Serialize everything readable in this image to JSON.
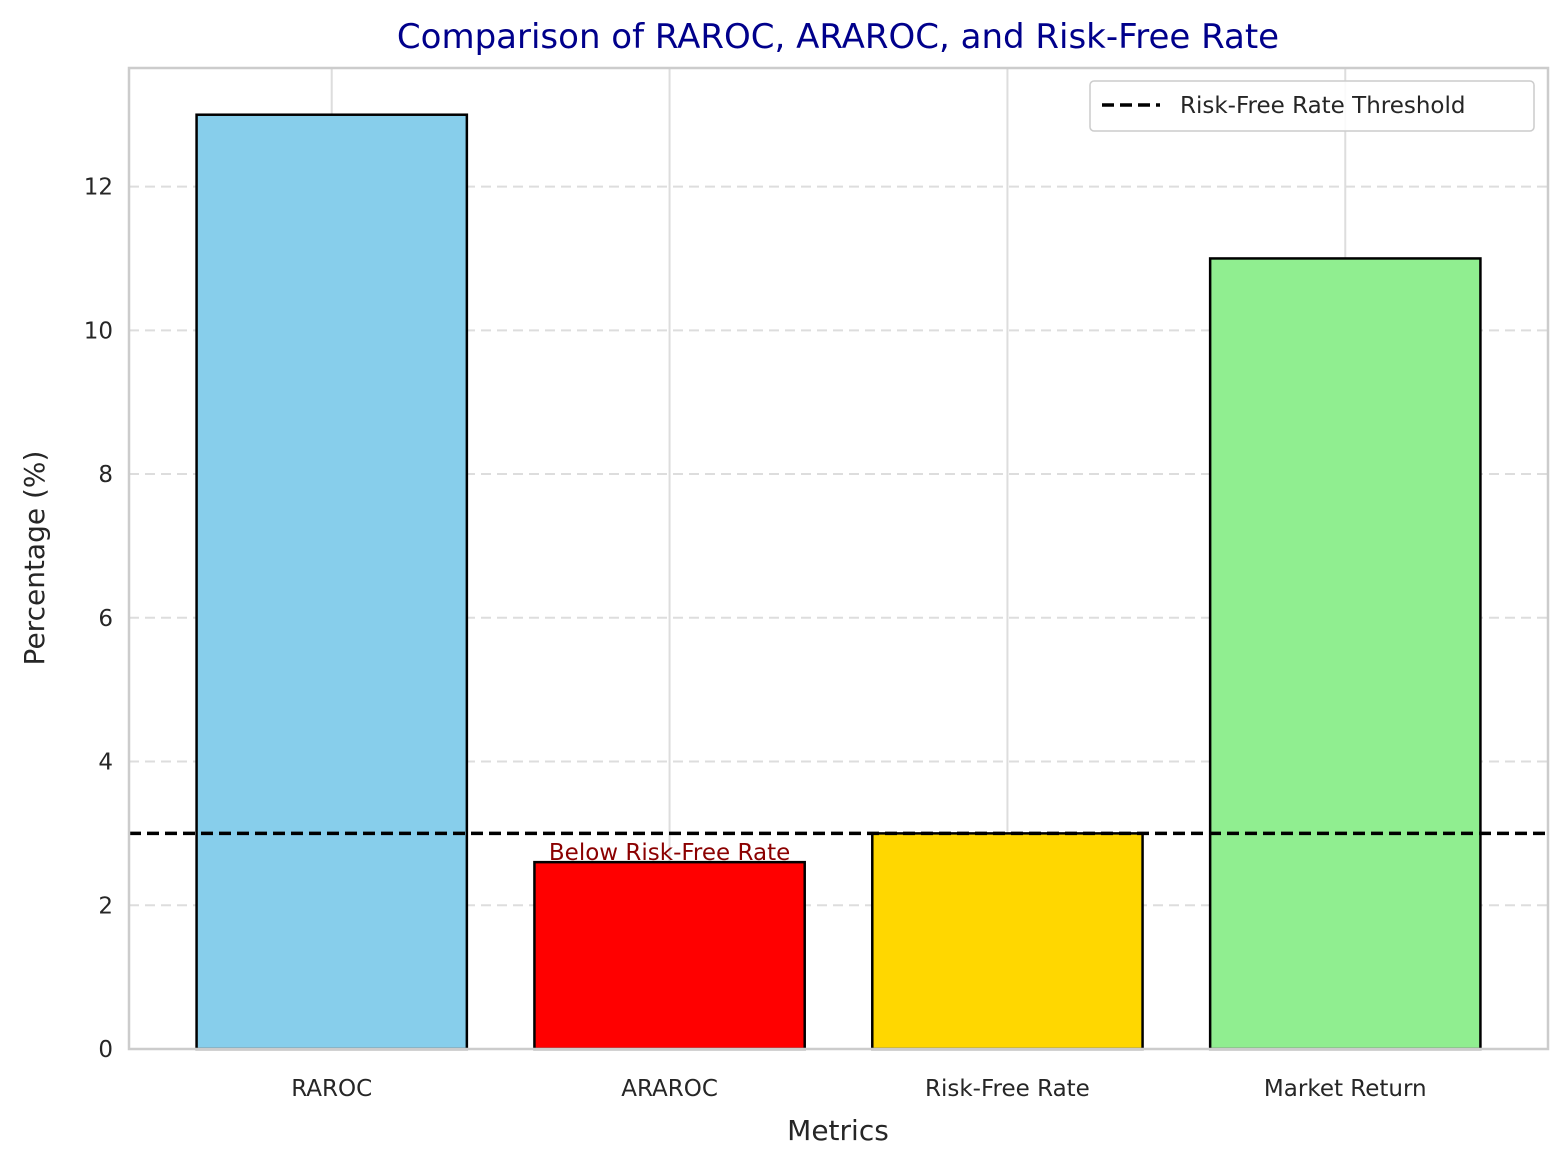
{
  "chart_data": {
    "type": "bar",
    "title": "Comparison of RAROC, ARAROC, and Risk-Free Rate",
    "xlabel": "Metrics",
    "ylabel": "Percentage (%)",
    "categories": [
      "RAROC",
      "ARAROC",
      "Risk-Free Rate",
      "Market Return"
    ],
    "values": [
      13.0,
      2.6,
      3.0,
      11.0
    ],
    "bar_colors": [
      "#87CEEB",
      "#FF0000",
      "#FFD700",
      "#90EE90"
    ],
    "bar_edge_color": "#000000",
    "ylim": [
      0,
      13.65
    ],
    "yticks": [
      0,
      2,
      4,
      6,
      8,
      10,
      12
    ],
    "ytick_labels": [
      "0",
      "2",
      "4",
      "6",
      "8",
      "10",
      "12"
    ],
    "threshold": {
      "value": 3.0,
      "label": "Risk-Free Rate Threshold",
      "color": "#000000",
      "style": "dashed"
    },
    "annotation": {
      "text": "Below Risk-Free Rate",
      "category": "ARAROC",
      "color": "#8B0000"
    },
    "legend": {
      "placement": "top-right",
      "entries": [
        "Risk-Free Rate Threshold"
      ]
    },
    "grid": true,
    "title_color": "#00008B"
  }
}
